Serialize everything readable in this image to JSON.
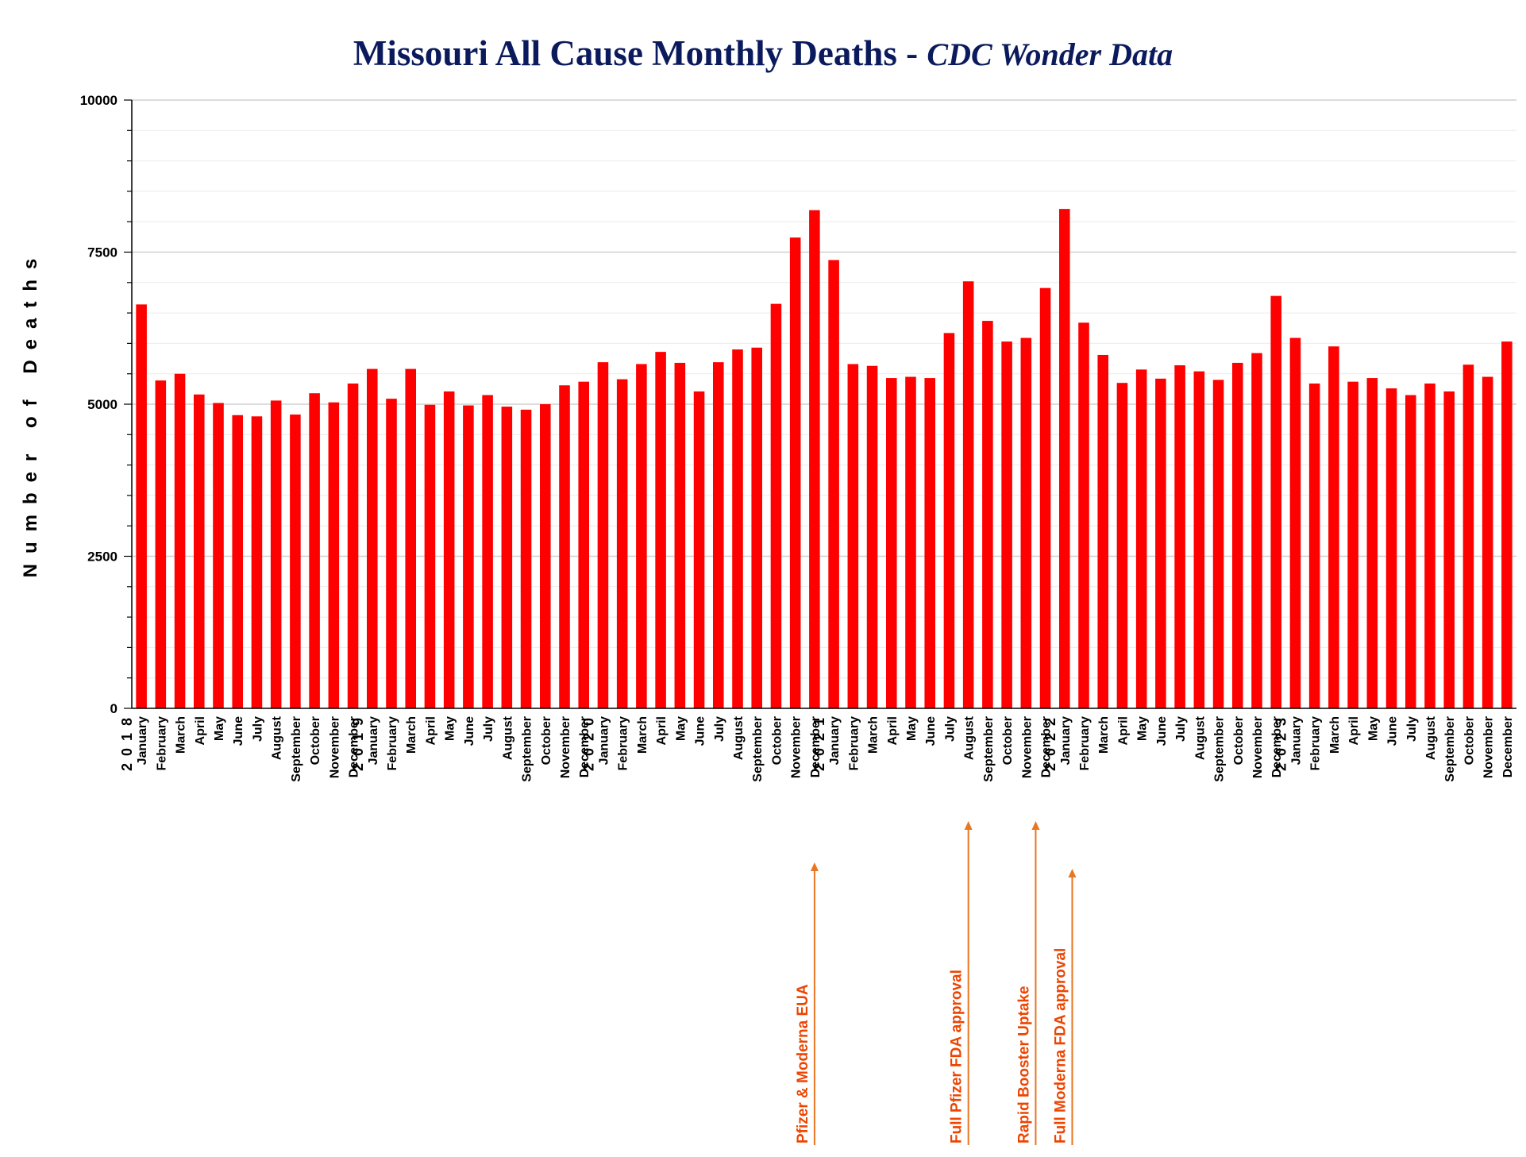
{
  "chart_data": {
    "type": "bar",
    "title": "Missouri All Cause Monthly Deaths - ",
    "subtitle": "CDC Wonder Data",
    "ylabel": "Number of Deaths",
    "xlabel": "",
    "ylim": [
      0,
      10000
    ],
    "yticks": [
      "0",
      "2500",
      "5000",
      "7500",
      "10000"
    ],
    "grid": true,
    "colors": {
      "bar": "#ff0000",
      "title": "#0b1a5c",
      "annotation": "#ee4400",
      "arrow": "#e87722",
      "grid": "#dddddd",
      "axis": "#000000"
    },
    "years": [
      {
        "label": "2 0 1 8",
        "index": 0
      },
      {
        "label": "2 0 1 9",
        "index": 12
      },
      {
        "label": "2 0 2 0",
        "index": 24
      },
      {
        "label": "2 0 2 1",
        "index": 36
      },
      {
        "label": "2 0 2 2",
        "index": 48
      },
      {
        "label": "2 0 2 3",
        "index": 60
      }
    ],
    "categories": [
      "January",
      "February",
      "March",
      "April",
      "May",
      "June",
      "July",
      "August",
      "September",
      "October",
      "November",
      "December",
      "January",
      "February",
      "March",
      "April",
      "May",
      "June",
      "July",
      "August",
      "September",
      "October",
      "November",
      "December",
      "January",
      "February",
      "March",
      "April",
      "May",
      "June",
      "July",
      "August",
      "September",
      "October",
      "November",
      "December",
      "January",
      "February",
      "March",
      "April",
      "May",
      "June",
      "July",
      "August",
      "September",
      "October",
      "November",
      "December",
      "January",
      "February",
      "March",
      "April",
      "May",
      "June",
      "July",
      "August",
      "September",
      "October",
      "November",
      "December",
      "January",
      "February",
      "March",
      "April",
      "May",
      "June",
      "July",
      "August",
      "September",
      "October",
      "November",
      "December"
    ],
    "values": [
      6640,
      5390,
      5500,
      5160,
      5020,
      4820,
      4800,
      5060,
      4830,
      5180,
      5030,
      5340,
      5580,
      5090,
      5580,
      4990,
      5210,
      4980,
      5150,
      4960,
      4910,
      5000,
      5310,
      5370,
      5690,
      5410,
      5660,
      5860,
      5680,
      5210,
      5690,
      5900,
      5930,
      6650,
      7740,
      8190,
      7370,
      5660,
      5630,
      5430,
      5450,
      5430,
      6170,
      7020,
      6370,
      6030,
      6090,
      6910,
      8210,
      6340,
      5810,
      5350,
      5570,
      5420,
      5640,
      5540,
      5400,
      5680,
      5840,
      6780,
      6090,
      5340,
      5950,
      5370,
      5430,
      5260,
      5150,
      5340,
      5210,
      5650,
      5450,
      6030
    ],
    "annotations": [
      {
        "label": "Pfizer & Moderna EUA",
        "index": 35
      },
      {
        "label": "Full Pfizer FDA approval",
        "index": 43
      },
      {
        "label": "Rapid Booster Uptake",
        "index": 46.5
      },
      {
        "label": "Full Moderna FDA approval",
        "index": 48.4
      }
    ]
  }
}
